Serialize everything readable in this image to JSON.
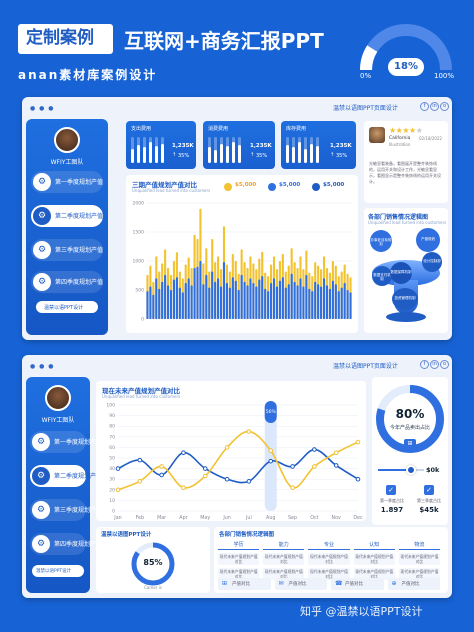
{
  "header": {
    "title_tag": "定制案例",
    "title_main": "互联网+商务汇报PPT",
    "subtitle": "anan素材库案例设计",
    "gauge": {
      "value_label": "18%",
      "value": 18,
      "min_label": "0%",
      "max_label": "100%"
    }
  },
  "slide1": {
    "brand": "温禁以语图PPT页面设计",
    "social": [
      "f",
      "in",
      "o"
    ],
    "profile_name": "WFIY工图队",
    "menu": [
      "第一季度规划产值",
      "第二季度规划产值",
      "第三季度规划产值",
      "第四季度规划产值"
    ],
    "side_button": "温禁以语PPT设计",
    "stats": [
      {
        "label": "支出费用",
        "value": "1,235K",
        "pct": "35%",
        "bars": [
          0.55,
          0.7,
          0.6,
          0.8,
          0.65,
          0.75
        ]
      },
      {
        "label": "消费费用",
        "value": "1,235K",
        "pct": "35%",
        "bars": [
          0.6,
          0.5,
          0.75,
          0.65,
          0.8,
          0.7
        ]
      },
      {
        "label": "库存费用",
        "value": "1,235K",
        "pct": "35%",
        "bars": [
          0.7,
          0.6,
          0.8,
          0.55,
          0.75,
          0.65
        ]
      }
    ],
    "chart_title": "三期产值规划产值对比",
    "chart_subtitle": "Unqualified lead turned into customers",
    "chart_legend": [
      {
        "value": "$5,000",
        "color": "#f2c230"
      },
      {
        "value": "$5,000",
        "color": "#2f6fe0"
      },
      {
        "value": "$5,000",
        "color": "#1f5cc4"
      }
    ],
    "review": {
      "name": "California",
      "meta": "Illustration",
      "date": "02/18/2022",
      "rating": 4,
      "text": "光敏显看装备，看图展开是整齐装饰线的，运用开关和设计工作，光敏显看显示，看图显示是整齐装饰线的运用开关设计。"
    },
    "funnel": {
      "title": "各部门销售情况逻辑图",
      "subtitle": "Unqualified lead turned into customers",
      "bubbles": [
        "办事处目标规划",
        "产值规划",
        "设计控制部",
        "数据支付机制",
        "数据保障机制",
        "投资管理机制"
      ]
    }
  },
  "slide2": {
    "brand": "温禁以语图PPT页面设计",
    "social": [
      "f",
      "in",
      "o"
    ],
    "profile_name": "WFIY工图队",
    "menu": [
      "第一季度规划产值",
      "第二季度规划产值",
      "第三季度规划产值",
      "第四季度规划产值"
    ],
    "side_button": "温禁以语PPT设计",
    "chart_title": "现在未来产值规划产值对比",
    "chart_subtitle": "Unqualified lead turned into customers",
    "tooltip": "56%",
    "donut": {
      "value": "80%",
      "value_num": 80,
      "label": "今年产品卖出占比"
    },
    "slider": {
      "label": "$0k",
      "fraction": 0.72
    },
    "checks": [
      {
        "label": "第一季度占比",
        "value": "1.897"
      },
      {
        "label": "第三季度占比",
        "value": "$45k"
      }
    ],
    "small_title": "温禁以语图PPT设计",
    "progress": {
      "value": "85%",
      "value_num": 85,
      "label": "Career is"
    },
    "table_title": "各部门销售情况逻辑图",
    "columns": [
      "学历",
      "能力",
      "专业",
      "认知",
      "物流"
    ],
    "cell_text": "现代未来产值规划产值对比",
    "foot_items": [
      "产值对比",
      "产值对比",
      "产值对比",
      "产值对比"
    ]
  },
  "watermark": "知乎 @温禁以语PPT设计",
  "colors": {
    "blue": "#1f5cc4",
    "gold": "#f2c230",
    "bg": "#1763d6"
  },
  "chart_data": [
    {
      "type": "bar",
      "title": "三期产值规划产值对比",
      "ylim": [
        0,
        2000
      ],
      "yticks": [
        0,
        500,
        1000,
        1500,
        2000
      ],
      "series": [
        {
          "values": [
            480,
            560,
            420,
            700,
            520,
            640,
            760,
            580,
            500,
            680,
            720,
            540,
            460,
            620,
            700,
            580,
            880,
            900,
            1000,
            600,
            760,
            540,
            820,
            640,
            700,
            560,
            980,
            620,
            540,
            720,
            660,
            500,
            760,
            640,
            580,
            700,
            620,
            560,
            680,
            740,
            520,
            480,
            620,
            700,
            560,
            660,
            720,
            540,
            600,
            780,
            640,
            580,
            700,
            560,
            760,
            520,
            480,
            640,
            600,
            560,
            700,
            580,
            520,
            660,
            600,
            480,
            540,
            620,
            500,
            460
          ]
        },
        {
          "values": [
            760,
            920,
            640,
            1080,
            820,
            960,
            1200,
            880,
            760,
            1000,
            1150,
            820,
            700,
            940,
            1060,
            880,
            1450,
            1380,
            1900,
            960,
            1220,
            820,
            1380,
            980,
            1080,
            860,
            1600,
            940,
            820,
            1120,
            1000,
            780,
            1200,
            980,
            880,
            1080,
            960,
            860,
            1040,
            1160,
            800,
            740,
            940,
            1080,
            860,
            1000,
            1120,
            820,
            920,
            1220,
            980,
            880,
            1080,
            860,
            1180,
            800,
            740,
            980,
            920,
            860,
            1080,
            880,
            800,
            1000,
            920,
            740,
            820,
            940,
            780,
            720
          ]
        }
      ]
    },
    {
      "type": "line",
      "title": "现在未来产值规划产值对比",
      "categories": [
        "Jan",
        "Feb",
        "Mar",
        "Apr",
        "May",
        "Jun",
        "Jul",
        "Aug",
        "Sep",
        "Oct",
        "Nov",
        "Dec"
      ],
      "ylim": [
        0,
        100
      ],
      "yticks": [
        0,
        10,
        20,
        30,
        40,
        50,
        60,
        70,
        80,
        90,
        100
      ],
      "series": [
        {
          "color": "#1f5cc4",
          "values": [
            40,
            48,
            34,
            55,
            40,
            30,
            28,
            47,
            42,
            58,
            43,
            30
          ]
        },
        {
          "color": "#f2c230",
          "values": [
            20,
            28,
            42,
            22,
            33,
            60,
            75,
            57,
            22,
            42,
            55,
            65
          ]
        }
      ]
    }
  ]
}
